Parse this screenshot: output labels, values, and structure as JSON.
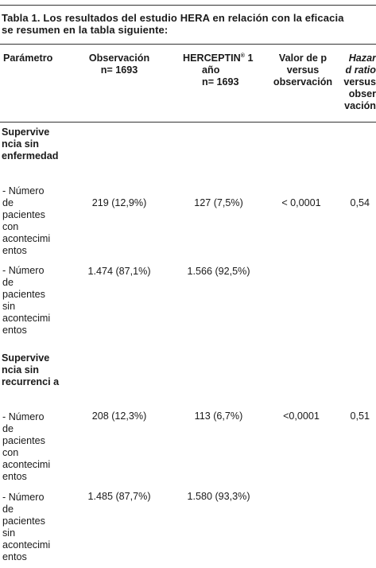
{
  "caption": {
    "line1": "Tabla 1. Los resultados del estudio HERA en relación con la eficacia",
    "line2": "se resumen en la tabla siguiente:"
  },
  "headers": {
    "param": "Parámetro",
    "obs_l1": "Observación",
    "obs_l2": "n= 1693",
    "her_l1": "HERCEPTIN",
    "her_sup": "®",
    "her_l1b": " 1",
    "her_l2": "año",
    "her_l3": "n= 1693",
    "pval_l1": "Valor de p",
    "pval_l2": "versus",
    "pval_l3": "observación",
    "hr_l1": "Hazar",
    "hr_l2": "d ratio",
    "hr_l3": "versus",
    "hr_l4": "obser",
    "hr_l5": "vación"
  },
  "sections": [
    {
      "title": [
        "Supervive",
        "ncia sin",
        "enfermedad"
      ],
      "rows": [
        {
          "label": [
            "- Número",
            "de",
            "pacientes",
            "con",
            "acontecimi",
            "entos"
          ],
          "obs": "219 (12,9%)",
          "her": "127 (7,5%)",
          "p": "< 0,0001",
          "hr": "0,54"
        },
        {
          "label": [
            "- Número",
            "de",
            "pacientes",
            "sin",
            "acontecimi",
            "entos"
          ],
          "obs": "1.474 (87,1%)",
          "her": "1.566 (92,5%)",
          "p": "",
          "hr": ""
        }
      ]
    },
    {
      "title": [
        "Supervive",
        "ncia sin",
        "recurrenci a"
      ],
      "rows": [
        {
          "label": [
            "- Número",
            "de",
            "pacientes",
            "con",
            "acontecimi",
            "entos"
          ],
          "obs": "208 (12,3%)",
          "her": "113 (6,7%)",
          "p": "<0,0001",
          "hr": "0,51"
        },
        {
          "label": [
            "- Número",
            "de",
            "pacientes",
            "sin",
            "acontecimi",
            "entos"
          ],
          "obs": "1.485 (87,7%)",
          "her": "1.580 (93,3%)",
          "p": "",
          "hr": ""
        }
      ]
    }
  ]
}
